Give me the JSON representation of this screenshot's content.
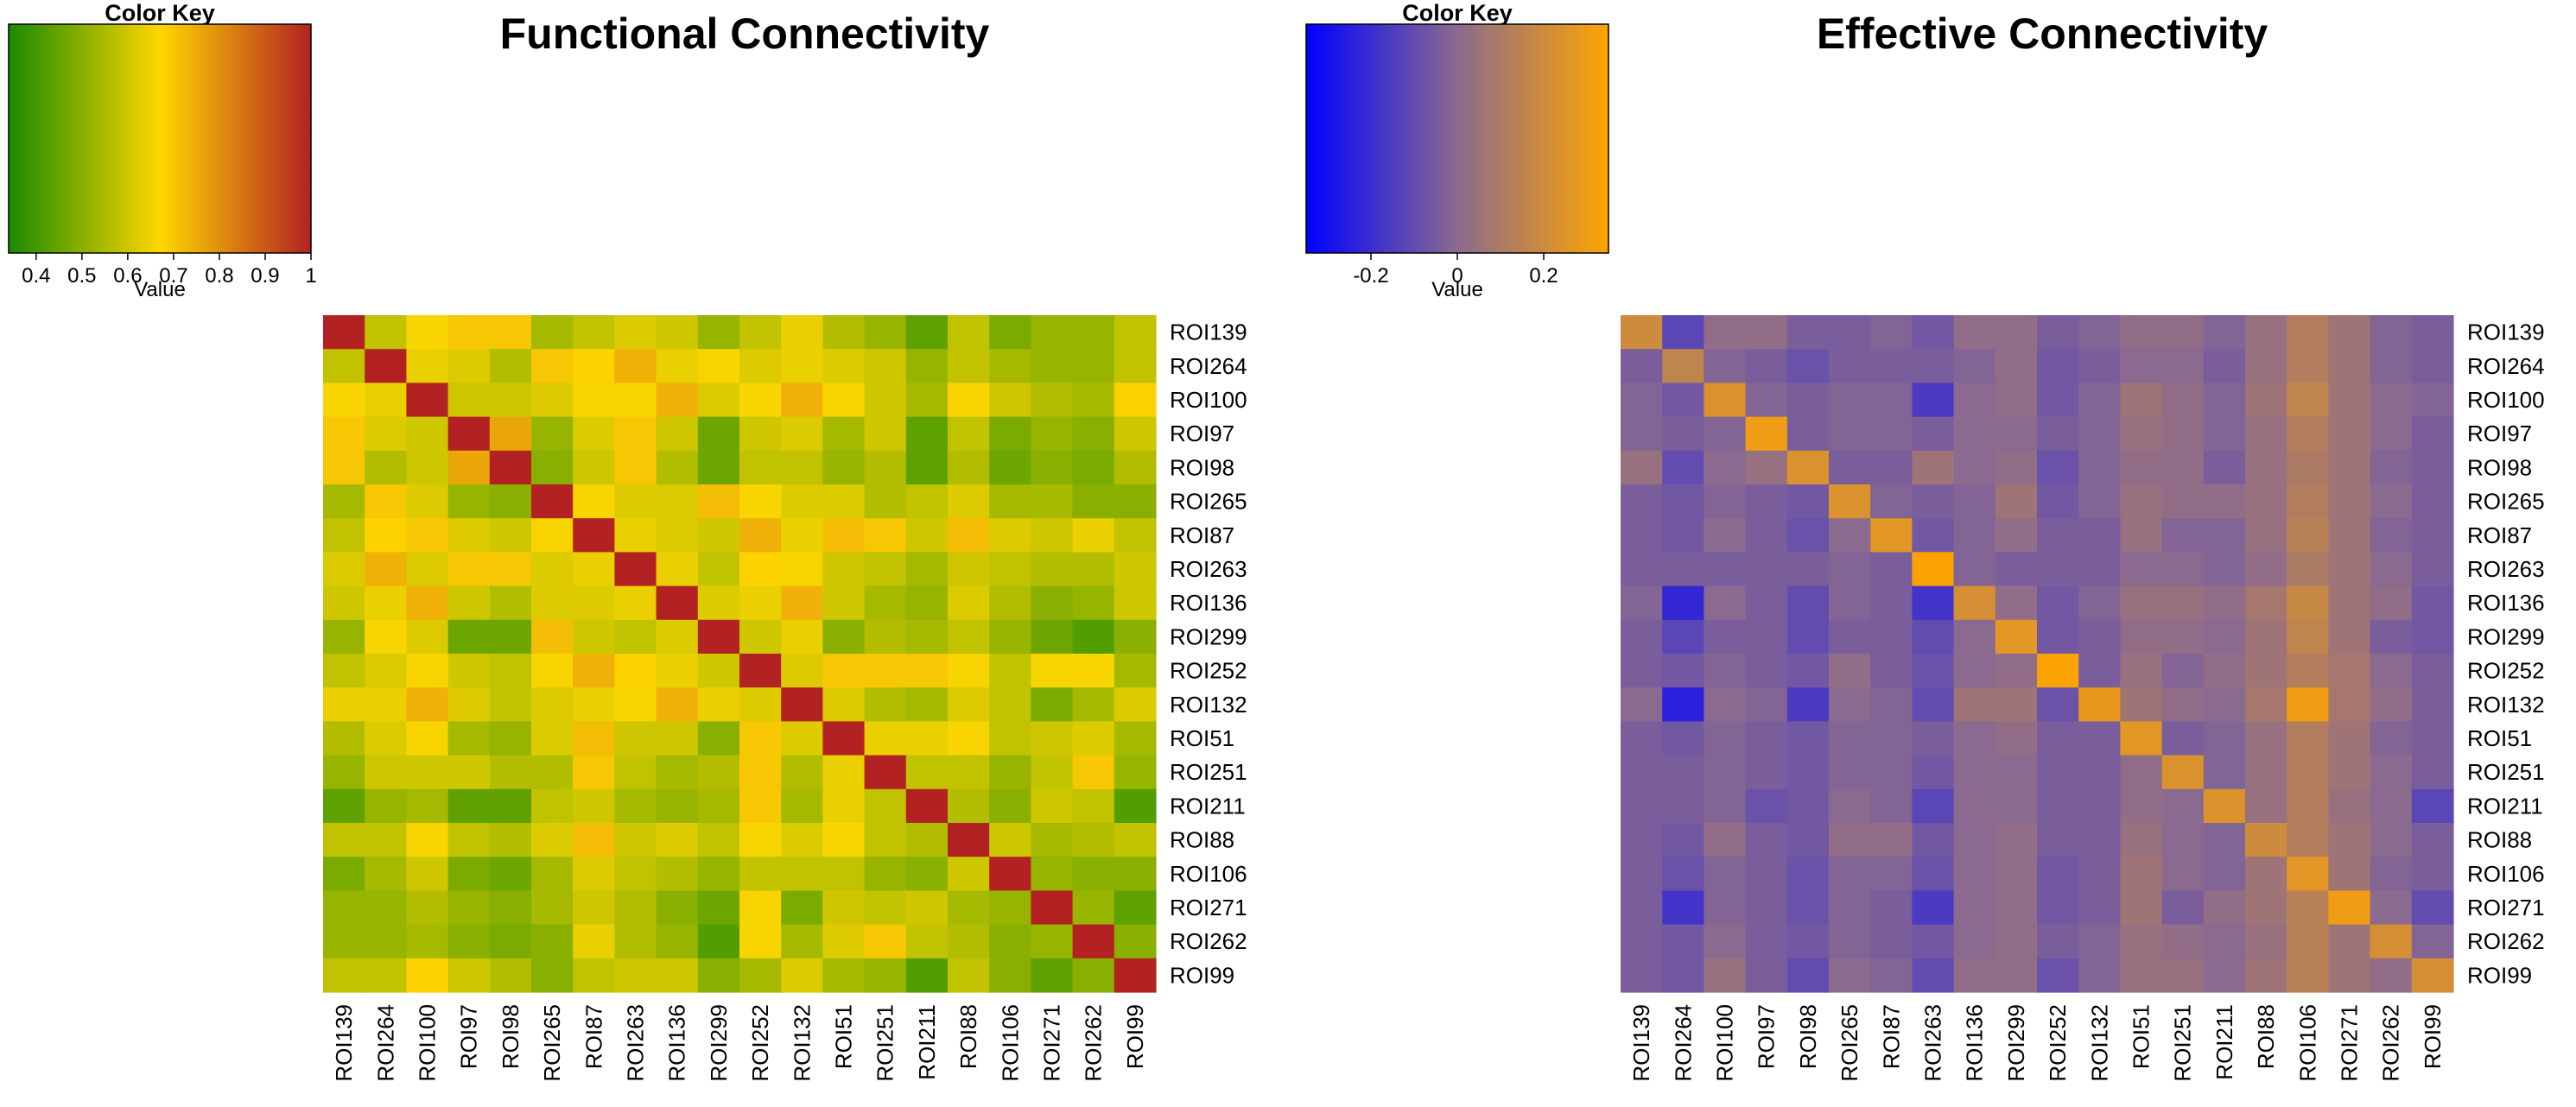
{
  "chart_data": [
    {
      "type": "heatmap",
      "title": "Functional Connectivity",
      "color_key": {
        "title": "Color Key",
        "xlabel": "Value",
        "ticks": [
          "0.4",
          "0.5",
          "0.6",
          "0.7",
          "0.8",
          "0.9",
          "1"
        ],
        "tick_values": [
          0.4,
          0.5,
          0.6,
          0.7,
          0.8,
          0.9,
          1.0
        ],
        "range": [
          0.34,
          1.0
        ],
        "colors": [
          "#1a8a00",
          "#ffd700",
          "#b22222"
        ]
      },
      "row_labels": [
        "ROI139",
        "ROI264",
        "ROI100",
        "ROI97",
        "ROI98",
        "ROI265",
        "ROI87",
        "ROI263",
        "ROI136",
        "ROI299",
        "ROI252",
        "ROI132",
        "ROI51",
        "ROI251",
        "ROI211",
        "ROI88",
        "ROI106",
        "ROI271",
        "ROI262",
        "ROI99"
      ],
      "col_labels": [
        "ROI139",
        "ROI264",
        "ROI100",
        "ROI97",
        "ROI98",
        "ROI265",
        "ROI87",
        "ROI263",
        "ROI136",
        "ROI299",
        "ROI252",
        "ROI132",
        "ROI51",
        "ROI251",
        "ROI211",
        "ROI88",
        "ROI106",
        "ROI271",
        "ROI262",
        "ROI99"
      ],
      "values": [
        [
          1.0,
          0.58,
          0.66,
          0.7,
          0.7,
          0.54,
          0.58,
          0.62,
          0.6,
          0.52,
          0.58,
          0.64,
          0.56,
          0.52,
          0.44,
          0.58,
          0.48,
          0.52,
          0.52,
          0.58
        ],
        [
          0.58,
          1.0,
          0.64,
          0.62,
          0.56,
          0.7,
          0.68,
          0.74,
          0.64,
          0.66,
          0.62,
          0.64,
          0.62,
          0.6,
          0.52,
          0.58,
          0.54,
          0.52,
          0.52,
          0.58
        ],
        [
          0.66,
          0.64,
          1.0,
          0.6,
          0.6,
          0.62,
          0.66,
          0.66,
          0.74,
          0.62,
          0.66,
          0.74,
          0.66,
          0.6,
          0.54,
          0.66,
          0.6,
          0.56,
          0.54,
          0.68
        ],
        [
          0.7,
          0.62,
          0.6,
          1.0,
          0.76,
          0.52,
          0.62,
          0.7,
          0.6,
          0.46,
          0.6,
          0.62,
          0.54,
          0.6,
          0.44,
          0.58,
          0.48,
          0.52,
          0.5,
          0.6
        ],
        [
          0.7,
          0.56,
          0.6,
          0.76,
          1.0,
          0.5,
          0.6,
          0.7,
          0.56,
          0.46,
          0.58,
          0.58,
          0.52,
          0.56,
          0.44,
          0.56,
          0.46,
          0.5,
          0.48,
          0.56
        ],
        [
          0.54,
          0.7,
          0.62,
          0.52,
          0.5,
          1.0,
          0.66,
          0.62,
          0.62,
          0.72,
          0.66,
          0.62,
          0.62,
          0.56,
          0.58,
          0.62,
          0.54,
          0.54,
          0.5,
          0.5
        ],
        [
          0.58,
          0.68,
          0.7,
          0.62,
          0.6,
          0.66,
          1.0,
          0.64,
          0.62,
          0.6,
          0.74,
          0.64,
          0.72,
          0.7,
          0.6,
          0.72,
          0.62,
          0.6,
          0.64,
          0.58
        ],
        [
          0.62,
          0.74,
          0.62,
          0.7,
          0.7,
          0.62,
          0.64,
          1.0,
          0.64,
          0.58,
          0.68,
          0.66,
          0.6,
          0.58,
          0.54,
          0.6,
          0.58,
          0.56,
          0.56,
          0.6
        ],
        [
          0.6,
          0.64,
          0.74,
          0.6,
          0.56,
          0.62,
          0.62,
          0.64,
          1.0,
          0.62,
          0.64,
          0.74,
          0.6,
          0.54,
          0.52,
          0.62,
          0.56,
          0.5,
          0.52,
          0.6
        ],
        [
          0.52,
          0.66,
          0.62,
          0.46,
          0.46,
          0.72,
          0.6,
          0.58,
          0.62,
          1.0,
          0.6,
          0.64,
          0.5,
          0.56,
          0.54,
          0.58,
          0.52,
          0.46,
          0.42,
          0.5
        ],
        [
          0.58,
          0.62,
          0.66,
          0.6,
          0.58,
          0.66,
          0.74,
          0.68,
          0.64,
          0.6,
          1.0,
          0.62,
          0.7,
          0.7,
          0.7,
          0.66,
          0.58,
          0.66,
          0.66,
          0.54
        ],
        [
          0.64,
          0.64,
          0.74,
          0.62,
          0.58,
          0.62,
          0.64,
          0.66,
          0.74,
          0.64,
          0.62,
          1.0,
          0.62,
          0.56,
          0.54,
          0.62,
          0.58,
          0.48,
          0.54,
          0.62
        ],
        [
          0.56,
          0.62,
          0.66,
          0.54,
          0.52,
          0.62,
          0.72,
          0.6,
          0.6,
          0.5,
          0.7,
          0.62,
          1.0,
          0.64,
          0.64,
          0.66,
          0.58,
          0.6,
          0.62,
          0.54
        ],
        [
          0.52,
          0.6,
          0.6,
          0.6,
          0.56,
          0.56,
          0.7,
          0.58,
          0.54,
          0.56,
          0.7,
          0.56,
          0.64,
          1.0,
          0.58,
          0.58,
          0.52,
          0.58,
          0.7,
          0.52
        ],
        [
          0.44,
          0.52,
          0.54,
          0.44,
          0.44,
          0.58,
          0.6,
          0.54,
          0.52,
          0.54,
          0.7,
          0.54,
          0.64,
          0.58,
          1.0,
          0.56,
          0.5,
          0.6,
          0.58,
          0.42
        ],
        [
          0.58,
          0.58,
          0.66,
          0.58,
          0.56,
          0.62,
          0.72,
          0.6,
          0.62,
          0.58,
          0.66,
          0.62,
          0.66,
          0.58,
          0.56,
          1.0,
          0.6,
          0.54,
          0.56,
          0.58
        ],
        [
          0.48,
          0.54,
          0.6,
          0.48,
          0.46,
          0.54,
          0.62,
          0.58,
          0.56,
          0.52,
          0.58,
          0.58,
          0.58,
          0.52,
          0.5,
          0.6,
          1.0,
          0.52,
          0.5,
          0.5
        ],
        [
          0.52,
          0.52,
          0.56,
          0.52,
          0.5,
          0.54,
          0.6,
          0.56,
          0.5,
          0.46,
          0.66,
          0.48,
          0.6,
          0.58,
          0.6,
          0.54,
          0.52,
          1.0,
          0.52,
          0.44
        ],
        [
          0.52,
          0.52,
          0.54,
          0.5,
          0.48,
          0.5,
          0.64,
          0.56,
          0.52,
          0.42,
          0.66,
          0.54,
          0.62,
          0.7,
          0.58,
          0.56,
          0.5,
          0.52,
          1.0,
          0.5
        ],
        [
          0.58,
          0.58,
          0.68,
          0.6,
          0.56,
          0.5,
          0.58,
          0.6,
          0.6,
          0.5,
          0.54,
          0.62,
          0.54,
          0.52,
          0.42,
          0.58,
          0.5,
          0.44,
          0.5,
          1.0
        ]
      ]
    },
    {
      "type": "heatmap",
      "title": "Effective Connectivity",
      "color_key": {
        "title": "Color Key",
        "xlabel": "Value",
        "ticks": [
          "-0.2",
          "0",
          "0.2"
        ],
        "tick_values": [
          -0.2,
          0.0,
          0.2
        ],
        "range": [
          -0.35,
          0.35
        ],
        "colors": [
          "#0000ff",
          "#8a6a8f",
          "#ffa500"
        ]
      },
      "row_labels": [
        "ROI139",
        "ROI264",
        "ROI100",
        "ROI97",
        "ROI98",
        "ROI265",
        "ROI87",
        "ROI263",
        "ROI136",
        "ROI299",
        "ROI252",
        "ROI132",
        "ROI51",
        "ROI251",
        "ROI211",
        "ROI88",
        "ROI106",
        "ROI271",
        "ROI262",
        "ROI99"
      ],
      "col_labels": [
        "ROI139",
        "ROI264",
        "ROI100",
        "ROI97",
        "ROI98",
        "ROI265",
        "ROI87",
        "ROI263",
        "ROI136",
        "ROI299",
        "ROI252",
        "ROI132",
        "ROI51",
        "ROI251",
        "ROI211",
        "ROI88",
        "ROI106",
        "ROI271",
        "ROI262",
        "ROI99"
      ],
      "values": [
        [
          0.2,
          -0.12,
          0.02,
          0.02,
          -0.04,
          -0.04,
          -0.02,
          -0.06,
          0.02,
          0.02,
          -0.04,
          -0.02,
          0.02,
          0.02,
          -0.02,
          0.04,
          0.12,
          0.06,
          -0.02,
          -0.04
        ],
        [
          -0.04,
          0.16,
          -0.02,
          -0.04,
          -0.08,
          -0.04,
          -0.04,
          -0.04,
          -0.02,
          0.02,
          -0.06,
          -0.04,
          0.0,
          0.0,
          -0.04,
          0.04,
          0.12,
          0.06,
          -0.02,
          -0.04
        ],
        [
          -0.02,
          -0.06,
          0.24,
          -0.02,
          -0.04,
          -0.02,
          -0.02,
          -0.16,
          0.0,
          0.02,
          -0.06,
          -0.02,
          0.06,
          0.02,
          -0.02,
          0.06,
          0.16,
          0.06,
          0.0,
          -0.02
        ],
        [
          -0.02,
          -0.04,
          -0.02,
          0.3,
          -0.04,
          -0.02,
          -0.02,
          -0.04,
          0.0,
          0.0,
          -0.04,
          -0.02,
          0.04,
          0.02,
          -0.02,
          0.04,
          0.12,
          0.06,
          0.0,
          -0.04
        ],
        [
          0.04,
          -0.1,
          0.0,
          0.04,
          0.24,
          -0.04,
          -0.04,
          0.06,
          0.0,
          0.02,
          -0.08,
          -0.02,
          0.02,
          0.02,
          -0.04,
          0.04,
          0.1,
          0.06,
          -0.02,
          -0.04
        ],
        [
          -0.04,
          -0.06,
          -0.02,
          -0.04,
          -0.06,
          0.24,
          -0.02,
          -0.04,
          -0.02,
          0.06,
          -0.06,
          -0.02,
          0.04,
          0.02,
          0.02,
          0.04,
          0.12,
          0.06,
          0.0,
          -0.04
        ],
        [
          -0.04,
          -0.06,
          0.0,
          -0.04,
          -0.08,
          0.0,
          0.26,
          -0.06,
          -0.02,
          0.02,
          -0.04,
          -0.04,
          0.04,
          -0.02,
          -0.02,
          0.04,
          0.14,
          0.06,
          -0.02,
          -0.04
        ],
        [
          -0.04,
          -0.04,
          -0.04,
          -0.04,
          -0.04,
          -0.02,
          -0.04,
          0.34,
          -0.02,
          -0.04,
          -0.04,
          -0.04,
          0.0,
          0.0,
          -0.02,
          0.02,
          0.1,
          0.06,
          0.0,
          -0.04
        ],
        [
          -0.02,
          -0.22,
          0.0,
          -0.04,
          -0.1,
          -0.02,
          -0.04,
          -0.18,
          0.22,
          0.02,
          -0.06,
          -0.02,
          0.04,
          0.04,
          0.02,
          0.08,
          0.18,
          0.06,
          0.02,
          -0.06
        ],
        [
          -0.04,
          -0.12,
          -0.04,
          -0.04,
          -0.1,
          -0.04,
          -0.04,
          -0.1,
          0.0,
          0.26,
          -0.06,
          -0.04,
          0.02,
          0.02,
          0.0,
          0.06,
          0.16,
          0.06,
          -0.04,
          -0.06
        ],
        [
          -0.04,
          -0.06,
          -0.02,
          -0.04,
          -0.06,
          0.02,
          -0.04,
          -0.08,
          0.0,
          0.02,
          0.34,
          -0.04,
          0.04,
          -0.02,
          0.02,
          0.06,
          0.12,
          0.08,
          0.0,
          -0.04
        ],
        [
          0.0,
          -0.24,
          0.0,
          -0.02,
          -0.16,
          0.0,
          -0.02,
          -0.1,
          0.06,
          0.06,
          -0.08,
          0.28,
          0.06,
          0.02,
          0.0,
          0.08,
          0.3,
          0.08,
          0.02,
          -0.04
        ],
        [
          -0.04,
          -0.06,
          -0.02,
          -0.04,
          -0.06,
          -0.02,
          -0.02,
          -0.04,
          0.0,
          0.02,
          -0.04,
          -0.04,
          0.26,
          -0.04,
          -0.02,
          0.04,
          0.12,
          0.06,
          -0.02,
          -0.04
        ],
        [
          -0.04,
          -0.04,
          -0.02,
          -0.04,
          -0.06,
          -0.02,
          -0.02,
          -0.06,
          0.0,
          0.0,
          -0.04,
          -0.04,
          0.02,
          0.24,
          -0.02,
          0.04,
          0.12,
          0.06,
          0.0,
          -0.04
        ],
        [
          -0.04,
          -0.04,
          -0.02,
          -0.08,
          -0.06,
          0.0,
          -0.02,
          -0.12,
          0.0,
          0.0,
          -0.04,
          -0.04,
          0.02,
          0.0,
          0.24,
          0.04,
          0.12,
          0.04,
          0.0,
          -0.12
        ],
        [
          -0.04,
          -0.06,
          0.02,
          -0.04,
          -0.06,
          0.02,
          0.02,
          -0.06,
          0.0,
          0.02,
          -0.04,
          -0.04,
          0.04,
          0.0,
          -0.02,
          0.2,
          0.12,
          0.06,
          0.0,
          -0.04
        ],
        [
          -0.04,
          -0.08,
          -0.02,
          -0.04,
          -0.08,
          -0.02,
          -0.02,
          -0.08,
          0.0,
          0.02,
          -0.06,
          -0.04,
          0.06,
          0.0,
          -0.02,
          0.06,
          0.26,
          0.06,
          -0.02,
          -0.04
        ],
        [
          -0.04,
          -0.18,
          -0.02,
          -0.04,
          -0.08,
          -0.02,
          -0.04,
          -0.16,
          0.0,
          0.02,
          -0.06,
          -0.04,
          0.06,
          -0.04,
          0.02,
          0.06,
          0.14,
          0.3,
          0.0,
          -0.1
        ],
        [
          -0.04,
          -0.06,
          0.0,
          -0.04,
          -0.06,
          -0.02,
          -0.04,
          -0.06,
          0.0,
          0.02,
          -0.04,
          -0.02,
          0.04,
          0.02,
          0.0,
          0.04,
          0.14,
          0.06,
          0.22,
          -0.02
        ],
        [
          -0.04,
          -0.06,
          0.04,
          -0.04,
          -0.1,
          0.0,
          -0.02,
          -0.1,
          0.02,
          0.02,
          -0.08,
          -0.02,
          0.04,
          0.04,
          0.0,
          0.06,
          0.14,
          0.06,
          0.02,
          0.22
        ]
      ]
    }
  ]
}
